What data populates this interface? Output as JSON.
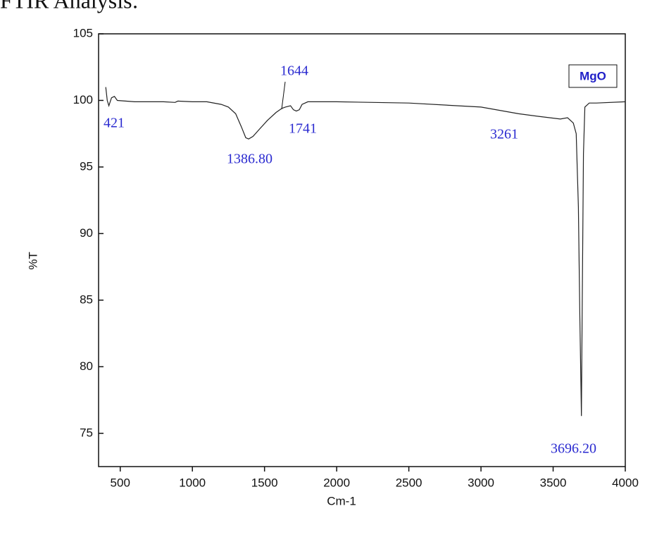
{
  "chart_data": {
    "type": "line",
    "title": "FTIR Analysis:",
    "x_label": "Cm-1",
    "y_label": "%T",
    "legend_label": "MgO",
    "xlim": [
      350,
      4000
    ],
    "ylim": [
      72.5,
      105
    ],
    "xticks": [
      500,
      1000,
      1500,
      2000,
      2500,
      3000,
      3500,
      4000
    ],
    "yticks": [
      75,
      80,
      85,
      90,
      95,
      100,
      105
    ],
    "annotations": [
      "421",
      "1386.80",
      "1644",
      "1741",
      "3261",
      "3696.20"
    ],
    "series": [
      {
        "name": "MgO",
        "color": "#222222",
        "x": [
          400,
          410,
          421,
          440,
          460,
          480,
          600,
          800,
          880,
          900,
          1000,
          1100,
          1200,
          1250,
          1300,
          1340,
          1370,
          1390,
          1420,
          1470,
          1520,
          1580,
          1620,
          1644,
          1680,
          1700,
          1720,
          1741,
          1760,
          1800,
          2000,
          2500,
          3000,
          3261,
          3400,
          3550,
          3600,
          3640,
          3660,
          3675,
          3685,
          3696.2,
          3702,
          3710,
          3720,
          3750,
          3800,
          4000
        ],
        "values": [
          101,
          100.0,
          99.6,
          100.2,
          100.3,
          100.0,
          99.9,
          99.9,
          99.85,
          99.95,
          99.9,
          99.9,
          99.7,
          99.5,
          99.0,
          98.0,
          97.2,
          97.1,
          97.3,
          97.9,
          98.5,
          99.1,
          99.4,
          99.5,
          99.6,
          99.3,
          99.2,
          99.3,
          99.7,
          99.9,
          99.9,
          99.8,
          99.5,
          99.0,
          98.8,
          98.6,
          98.7,
          98.3,
          97.5,
          92,
          84,
          76.3,
          85,
          96,
          99.5,
          99.8,
          99.8,
          99.9
        ]
      }
    ]
  }
}
